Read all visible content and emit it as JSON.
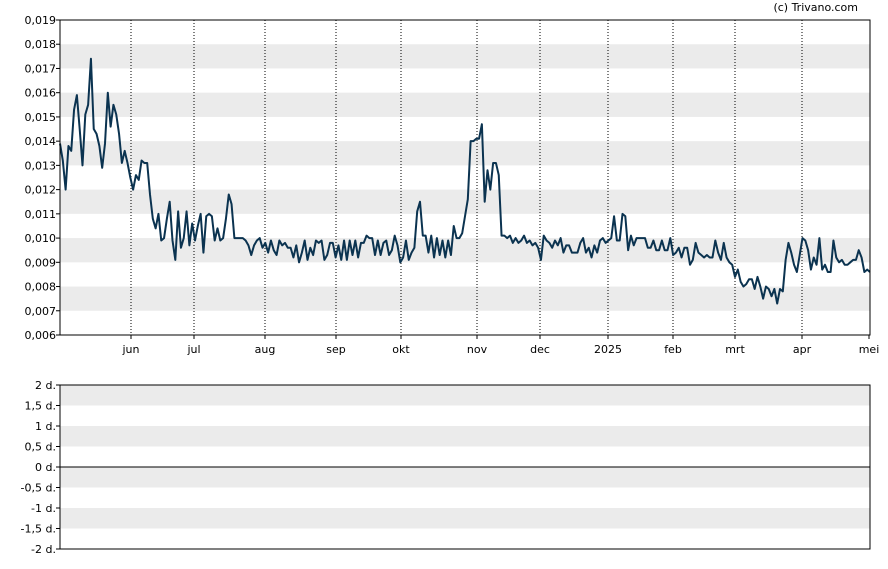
{
  "copyright": "(c) Trivano.com",
  "colors": {
    "line": "#0b3350",
    "band": "#ebebeb",
    "axis": "#000000",
    "background": "#ffffff"
  },
  "chart_data": [
    {
      "type": "line",
      "title": "",
      "xlabel": "",
      "ylabel": "",
      "ylim": [
        0.006,
        0.019
      ],
      "grid": "horizontal bands and dotted vertical lines at month boundaries",
      "y_ticks": [
        "0,006",
        "0,007",
        "0,008",
        "0,009",
        "0,010",
        "0,011",
        "0,012",
        "0,013",
        "0,014",
        "0,015",
        "0,016",
        "0,017",
        "0,018",
        "0,019"
      ],
      "x_ticks": [
        "jun",
        "jul",
        "aug",
        "sep",
        "okt",
        "nov",
        "dec",
        "2025",
        "feb",
        "mrt",
        "apr",
        "mei"
      ],
      "series": [
        {
          "values": [
            0.0139,
            0.0132,
            0.012,
            0.0138,
            0.0136,
            0.0153,
            0.0159,
            0.0145,
            0.013,
            0.0151,
            0.0155,
            0.0174,
            0.0145,
            0.0143,
            0.0138,
            0.0129,
            0.0139,
            0.016,
            0.0146,
            0.0155,
            0.0151,
            0.0143,
            0.0131,
            0.0136,
            0.0131,
            0.0125,
            0.012,
            0.0126,
            0.0124,
            0.0132,
            0.0131,
            0.0131,
            0.0118,
            0.0108,
            0.0104,
            0.011,
            0.0099,
            0.01,
            0.0108,
            0.0115,
            0.0099,
            0.0091,
            0.0111,
            0.0096,
            0.01,
            0.0111,
            0.0097,
            0.0106,
            0.0099,
            0.0105,
            0.011,
            0.0094,
            0.0109,
            0.011,
            0.0109,
            0.0099,
            0.0104,
            0.0099,
            0.01,
            0.0108,
            0.0118,
            0.0114,
            0.01,
            0.01,
            0.01,
            0.01,
            0.0099,
            0.0097,
            0.0093,
            0.0097,
            0.0099,
            0.01,
            0.0096,
            0.0098,
            0.0094,
            0.0099,
            0.0095,
            0.0093,
            0.0099,
            0.0097,
            0.0098,
            0.0096,
            0.0096,
            0.0092,
            0.0097,
            0.009,
            0.0094,
            0.0099,
            0.0091,
            0.0096,
            0.0093,
            0.0099,
            0.0098,
            0.0099,
            0.0091,
            0.0093,
            0.0098,
            0.0098,
            0.0092,
            0.0097,
            0.0091,
            0.0099,
            0.0091,
            0.0099,
            0.0093,
            0.0099,
            0.0092,
            0.0098,
            0.0098,
            0.0101,
            0.01,
            0.01,
            0.0093,
            0.0099,
            0.0093,
            0.0098,
            0.0099,
            0.0093,
            0.0095,
            0.0101,
            0.0097,
            0.009,
            0.0092,
            0.0099,
            0.0091,
            0.0094,
            0.0096,
            0.0111,
            0.0115,
            0.0101,
            0.0101,
            0.0094,
            0.0101,
            0.0092,
            0.01,
            0.0093,
            0.0099,
            0.0092,
            0.0099,
            0.0093,
            0.0105,
            0.01,
            0.01,
            0.0102,
            0.0109,
            0.0116,
            0.014,
            0.014,
            0.0141,
            0.0141,
            0.0147,
            0.0115,
            0.0128,
            0.012,
            0.0131,
            0.0131,
            0.0126,
            0.0101,
            0.0101,
            0.01,
            0.0101,
            0.0098,
            0.01,
            0.0098,
            0.0099,
            0.0101,
            0.0098,
            0.0099,
            0.0097,
            0.0098,
            0.0096,
            0.0091,
            0.0101,
            0.0099,
            0.0098,
            0.0096,
            0.0099,
            0.0097,
            0.01,
            0.0094,
            0.0097,
            0.0097,
            0.0094,
            0.0094,
            0.0094,
            0.0098,
            0.01,
            0.0094,
            0.0096,
            0.0092,
            0.0097,
            0.0094,
            0.0099,
            0.01,
            0.0098,
            0.0099,
            0.01,
            0.0109,
            0.0099,
            0.0099,
            0.011,
            0.0109,
            0.0095,
            0.0101,
            0.0097,
            0.01,
            0.01,
            0.01,
            0.01,
            0.0096,
            0.0096,
            0.0099,
            0.0095,
            0.0095,
            0.0099,
            0.0095,
            0.0095,
            0.01,
            0.0093,
            0.0094,
            0.0096,
            0.0092,
            0.0096,
            0.0096,
            0.0089,
            0.0091,
            0.0098,
            0.0094,
            0.0093,
            0.0092,
            0.0093,
            0.0092,
            0.0092,
            0.0099,
            0.0094,
            0.0091,
            0.0098,
            0.0092,
            0.009,
            0.0089,
            0.0084,
            0.0087,
            0.0082,
            0.008,
            0.0081,
            0.0083,
            0.0083,
            0.0079,
            0.0084,
            0.008,
            0.0075,
            0.008,
            0.0079,
            0.0076,
            0.0079,
            0.0073,
            0.0079,
            0.0078,
            0.0091,
            0.0098,
            0.0094,
            0.0089,
            0.0086,
            0.0093,
            0.01,
            0.0099,
            0.0095,
            0.0087,
            0.0092,
            0.0089,
            0.01,
            0.0087,
            0.0089,
            0.0086,
            0.0086,
            0.0099,
            0.0092,
            0.009,
            0.0091,
            0.0089,
            0.0089,
            0.009,
            0.0091,
            0.0091,
            0.0095,
            0.0092,
            0.0086,
            0.0087,
            0.0086
          ]
        }
      ]
    },
    {
      "type": "line",
      "title": "",
      "ylim": [
        -2,
        2
      ],
      "y_ticks": [
        "2 d.",
        "1,5 d.",
        "1 d.",
        "0,5 d.",
        "0 d.",
        "-0,5 d.",
        "-1 d.",
        "-1,5 d.",
        "-2 d."
      ],
      "series": [
        {
          "values": [
            0,
            0
          ]
        }
      ]
    }
  ]
}
